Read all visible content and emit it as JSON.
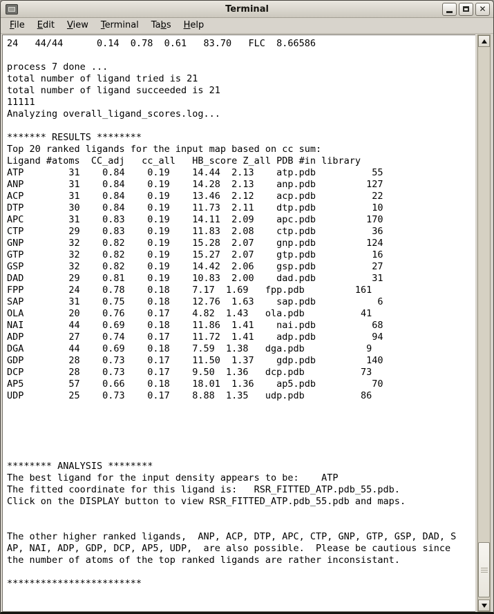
{
  "window": {
    "title": "Terminal",
    "icon": "terminal-icon",
    "controls": [
      {
        "name": "minimize"
      },
      {
        "name": "maximize"
      },
      {
        "name": "close",
        "glyph": "✕"
      }
    ]
  },
  "menu": {
    "items": [
      {
        "label": "File",
        "mnemonic": 0
      },
      {
        "label": "Edit",
        "mnemonic": 0
      },
      {
        "label": "View",
        "mnemonic": 0
      },
      {
        "label": "Terminal",
        "mnemonic": 0
      },
      {
        "label": "Tabs",
        "mnemonic": 2
      },
      {
        "label": "Help",
        "mnemonic": 0
      }
    ]
  },
  "terminal": {
    "lines": [
      "24   44/44      0.14  0.78  0.61   83.70   FLC  8.66586",
      "",
      "process 7 done ...",
      "total number of ligand tried is 21",
      "total number of ligand succeeded is 21",
      "11111",
      "Analyzing overall_ligand_scores.log...",
      "",
      "******* RESULTS ********",
      "Top 20 ranked ligands for the input map based on cc sum:",
      "Ligand #atoms  CC_adj   cc_all   HB_score Z_all PDB #in library",
      "ATP        31    0.84    0.19    14.44  2.13    atp.pdb          55",
      "ANP        31    0.84    0.19    14.28  2.13    anp.pdb         127",
      "ACP        31    0.84    0.19    13.46  2.12    acp.pdb          22",
      "DTP        30    0.84    0.19    11.73  2.11    dtp.pdb          10",
      "APC        31    0.83    0.19    14.11  2.09    apc.pdb         170",
      "CTP        29    0.83    0.19    11.83  2.08    ctp.pdb          36",
      "GNP        32    0.82    0.19    15.28  2.07    gnp.pdb         124",
      "GTP        32    0.82    0.19    15.27  2.07    gtp.pdb          16",
      "GSP        32    0.82    0.19    14.42  2.06    gsp.pdb          27",
      "DAD        29    0.81    0.19    10.83  2.00    dad.pdb          31",
      "FPP        24    0.78    0.18    7.17  1.69   fpp.pdb         161",
      "SAP        31    0.75    0.18    12.76  1.63    sap.pdb           6",
      "OLA        20    0.76    0.17    4.82  1.43   ola.pdb          41",
      "NAI        44    0.69    0.18    11.86  1.41    nai.pdb          68",
      "ADP        27    0.74    0.17    11.72  1.41    adp.pdb          94",
      "DGA        44    0.69    0.18    7.59  1.38   dga.pdb           9",
      "GDP        28    0.73    0.17    11.50  1.37    gdp.pdb         140",
      "DCP        28    0.73    0.17    9.50  1.36   dcp.pdb          73",
      "AP5        57    0.66    0.18    18.01  1.36    ap5.pdb          70",
      "UDP        25    0.73    0.17    8.88  1.35   udp.pdb          86",
      "",
      "",
      "",
      "",
      "",
      "******** ANALYSIS ********",
      "The best ligand for the input density appears to be:    ATP",
      "The fitted coordinate for this ligand is:   RSR_FITTED_ATP.pdb_55.pdb.",
      "Click on the DISPLAY button to view RSR_FITTED_ATP.pdb_55.pdb and maps.",
      "",
      "",
      "The other higher ranked ligands,  ANP, ACP, DTP, APC, CTP, GNP, GTP, GSP, DAD, S",
      "AP, NAI, ADP, GDP, DCP, AP5, UDP,  are also possible.  Please be cautious since",
      "the number of atoms of the top ranked ligands are rather inconsistant.",
      "",
      "************************"
    ]
  },
  "colors": {
    "chrome": "#d8d4cc",
    "terminal_bg": "#ffffff",
    "terminal_fg": "#000000"
  }
}
